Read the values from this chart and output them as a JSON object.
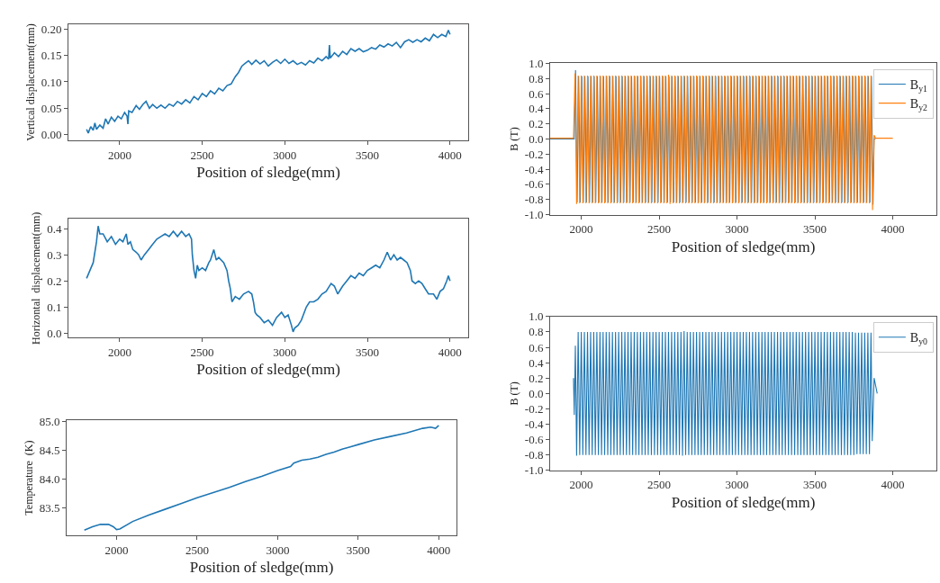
{
  "chart_data": [
    {
      "type": "line",
      "xlabel": "Position of sledge(mm)",
      "ylabel": "Vertical displacement(mm)",
      "xlim": [
        1690,
        4110
      ],
      "ylim": [
        -0.0117,
        0.21
      ],
      "xticks": [
        2000,
        2500,
        3000,
        3500,
        4000
      ],
      "yticks": [
        {
          "value": 0,
          "label": "0.00"
        },
        {
          "value": 0.05,
          "label": "0.05"
        },
        {
          "value": 0.1,
          "label": "0.10"
        },
        {
          "value": 0.15,
          "label": "0.15"
        },
        {
          "value": 0.2,
          "label": "0.20"
        }
      ],
      "x": [
        1800,
        1810,
        1825,
        1840,
        1850,
        1860,
        1880,
        1900,
        1915,
        1930,
        1950,
        1970,
        1990,
        2010,
        2030,
        2045,
        2050,
        2055,
        2075,
        2100,
        2120,
        2140,
        2160,
        2180,
        2200,
        2225,
        2250,
        2275,
        2300,
        2325,
        2350,
        2375,
        2400,
        2425,
        2450,
        2475,
        2500,
        2525,
        2550,
        2575,
        2600,
        2625,
        2650,
        2675,
        2700,
        2720,
        2740,
        2760,
        2780,
        2800,
        2825,
        2850,
        2875,
        2900,
        2925,
        2950,
        2975,
        3000,
        3025,
        3050,
        3075,
        3100,
        3125,
        3150,
        3175,
        3200,
        3225,
        3250,
        3265,
        3270,
        3275,
        3300,
        3325,
        3350,
        3375,
        3400,
        3425,
        3450,
        3475,
        3500,
        3525,
        3550,
        3575,
        3600,
        3625,
        3650,
        3675,
        3700,
        3725,
        3750,
        3775,
        3800,
        3825,
        3850,
        3875,
        3900,
        3925,
        3950,
        3975,
        3990,
        4000
      ],
      "series": [
        {
          "color": "#1f77b4",
          "values": [
            0.01,
            0.003,
            0.015,
            0.008,
            0.022,
            0.01,
            0.018,
            0.012,
            0.03,
            0.02,
            0.033,
            0.025,
            0.035,
            0.03,
            0.042,
            0.035,
            0.02,
            0.045,
            0.042,
            0.055,
            0.048,
            0.057,
            0.063,
            0.05,
            0.057,
            0.05,
            0.056,
            0.05,
            0.058,
            0.054,
            0.063,
            0.058,
            0.066,
            0.06,
            0.072,
            0.066,
            0.078,
            0.072,
            0.083,
            0.077,
            0.088,
            0.083,
            0.093,
            0.096,
            0.11,
            0.118,
            0.13,
            0.135,
            0.14,
            0.133,
            0.141,
            0.134,
            0.14,
            0.13,
            0.137,
            0.142,
            0.135,
            0.143,
            0.135,
            0.14,
            0.133,
            0.137,
            0.132,
            0.14,
            0.136,
            0.145,
            0.14,
            0.148,
            0.143,
            0.17,
            0.145,
            0.155,
            0.148,
            0.158,
            0.152,
            0.163,
            0.158,
            0.163,
            0.157,
            0.16,
            0.165,
            0.162,
            0.17,
            0.166,
            0.172,
            0.168,
            0.175,
            0.165,
            0.176,
            0.18,
            0.175,
            0.18,
            0.176,
            0.183,
            0.178,
            0.19,
            0.184,
            0.19,
            0.186,
            0.198,
            0.19
          ]
        }
      ]
    },
    {
      "type": "line",
      "xlabel": "Position of sledge(mm)",
      "ylabel": "Horizontal  displacement(mm)",
      "xlim": [
        1690,
        4110
      ],
      "ylim": [
        -0.017,
        0.437
      ],
      "xticks": [
        2000,
        2500,
        3000,
        3500,
        4000
      ],
      "yticks": [
        {
          "value": 0,
          "label": "0.0"
        },
        0.1,
        0.2,
        0.3,
        0.4
      ],
      "x": [
        1800,
        1820,
        1840,
        1860,
        1870,
        1880,
        1900,
        1925,
        1950,
        1975,
        2000,
        2020,
        2040,
        2050,
        2065,
        2080,
        2100,
        2115,
        2130,
        2150,
        2175,
        2200,
        2225,
        2250,
        2275,
        2300,
        2325,
        2350,
        2375,
        2400,
        2420,
        2435,
        2440,
        2450,
        2460,
        2470,
        2480,
        2500,
        2520,
        2540,
        2550,
        2570,
        2585,
        2600,
        2630,
        2650,
        2660,
        2670,
        2680,
        2700,
        2725,
        2750,
        2780,
        2800,
        2810,
        2820,
        2830,
        2850,
        2875,
        2900,
        2925,
        2950,
        2980,
        3000,
        3020,
        3040,
        3050,
        3060,
        3080,
        3100,
        3130,
        3150,
        3175,
        3200,
        3225,
        3250,
        3280,
        3300,
        3320,
        3350,
        3375,
        3400,
        3425,
        3450,
        3475,
        3500,
        3525,
        3550,
        3575,
        3600,
        3620,
        3640,
        3660,
        3680,
        3700,
        3720,
        3740,
        3760,
        3770,
        3790,
        3810,
        3830,
        3850,
        3870,
        3900,
        3920,
        3940,
        3960,
        3980,
        3990,
        4000
      ],
      "series": [
        {
          "color": "#1f77b4",
          "values": [
            0.21,
            0.24,
            0.27,
            0.35,
            0.41,
            0.38,
            0.38,
            0.35,
            0.37,
            0.34,
            0.36,
            0.35,
            0.38,
            0.34,
            0.35,
            0.32,
            0.31,
            0.3,
            0.28,
            0.3,
            0.32,
            0.34,
            0.36,
            0.37,
            0.38,
            0.37,
            0.39,
            0.37,
            0.39,
            0.37,
            0.38,
            0.36,
            0.3,
            0.24,
            0.21,
            0.26,
            0.24,
            0.25,
            0.24,
            0.27,
            0.28,
            0.32,
            0.28,
            0.29,
            0.27,
            0.24,
            0.2,
            0.17,
            0.12,
            0.14,
            0.13,
            0.15,
            0.16,
            0.15,
            0.12,
            0.08,
            0.07,
            0.06,
            0.04,
            0.05,
            0.03,
            0.06,
            0.08,
            0.06,
            0.07,
            0.03,
            0.005,
            0.02,
            0.03,
            0.05,
            0.1,
            0.12,
            0.12,
            0.13,
            0.15,
            0.16,
            0.19,
            0.18,
            0.15,
            0.18,
            0.2,
            0.22,
            0.21,
            0.23,
            0.22,
            0.24,
            0.25,
            0.26,
            0.25,
            0.28,
            0.31,
            0.28,
            0.3,
            0.28,
            0.29,
            0.28,
            0.27,
            0.24,
            0.2,
            0.19,
            0.2,
            0.19,
            0.17,
            0.15,
            0.15,
            0.13,
            0.16,
            0.17,
            0.2,
            0.22,
            0.2
          ]
        }
      ]
    },
    {
      "type": "line",
      "xlabel": "Position of sledge(mm)",
      "ylabel": "Temperature  (K)",
      "xlim": [
        1690,
        4110
      ],
      "ylim": [
        83.03,
        85.02
      ],
      "xticks": [
        2000,
        2500,
        3000,
        3500,
        4000
      ],
      "yticks": [
        83.5,
        {
          "value": 84,
          "label": "84.0"
        },
        84.5,
        {
          "value": 85,
          "label": "85.0"
        }
      ],
      "x": [
        1800,
        1850,
        1900,
        1950,
        1980,
        2000,
        2020,
        2100,
        2200,
        2300,
        2400,
        2500,
        2600,
        2700,
        2800,
        2900,
        3000,
        3080,
        3100,
        3150,
        3200,
        3250,
        3300,
        3350,
        3400,
        3450,
        3500,
        3600,
        3700,
        3800,
        3900,
        3950,
        3980,
        4000
      ],
      "series": [
        {
          "color": "#1f77b4",
          "values": [
            83.12,
            83.18,
            83.22,
            83.22,
            83.18,
            83.13,
            83.14,
            83.27,
            83.38,
            83.48,
            83.58,
            83.68,
            83.77,
            83.86,
            83.96,
            84.05,
            84.15,
            84.22,
            84.28,
            84.33,
            84.35,
            84.38,
            84.43,
            84.47,
            84.52,
            84.56,
            84.6,
            84.68,
            84.74,
            84.8,
            84.88,
            84.9,
            84.88,
            84.93
          ]
        }
      ]
    },
    {
      "type": "line",
      "xlabel": "Position of sledge(mm)",
      "ylabel": "B (T)",
      "legend": "top right",
      "xlim": [
        1800,
        4280
      ],
      "ylim": [
        -1.0,
        1.0
      ],
      "xticks": [
        2000,
        2500,
        3000,
        3500,
        4000
      ],
      "yticks": [
        {
          "value": -1,
          "label": "-1.0"
        },
        -0.8,
        -0.6,
        -0.4,
        -0.2,
        {
          "value": 0,
          "label": "0.0"
        },
        0.2,
        0.4,
        0.6,
        0.8,
        {
          "value": 1,
          "label": "1.0"
        }
      ],
      "x": [
        1800,
        1950,
        1960,
        1970,
        1980,
        1990,
        2000,
        2010,
        2020,
        2030,
        2040,
        2050,
        2060,
        2070,
        2080,
        2090,
        2100,
        2110,
        2120,
        2130,
        2140,
        2150,
        2160,
        2170,
        2180,
        2190,
        2200,
        2210,
        2220,
        2230,
        2240,
        2250,
        2260,
        2270,
        2280,
        2290,
        2300,
        2310,
        2320,
        2330,
        2340,
        2350,
        2360,
        2370,
        2380,
        2390,
        2400,
        2410,
        2420,
        2430,
        2440,
        2450,
        2460,
        2470,
        2480,
        2490,
        2500,
        2510,
        2520,
        2530,
        2540,
        2550,
        2560,
        2570,
        2580,
        2590,
        2600,
        2610,
        2620,
        2630,
        2640,
        2650,
        2660,
        2670,
        2680,
        2690,
        2700,
        2710,
        2720,
        2730,
        2740,
        2750,
        2760,
        2770,
        2780,
        2790,
        2800,
        2810,
        2820,
        2830,
        2840,
        2850,
        2860,
        2870,
        2880,
        2890,
        2900,
        2910,
        2920,
        2930,
        2940,
        2950,
        2960,
        2970,
        2980,
        2990,
        3000,
        3010,
        3020,
        3030,
        3040,
        3050,
        3060,
        3070,
        3080,
        3090,
        3100,
        3110,
        3120,
        3130,
        3140,
        3150,
        3160,
        3170,
        3180,
        3190,
        3200,
        3210,
        3220,
        3230,
        3240,
        3250,
        3260,
        3270,
        3280,
        3290,
        3300,
        3310,
        3320,
        3330,
        3340,
        3350,
        3360,
        3370,
        3380,
        3390,
        3400,
        3410,
        3420,
        3430,
        3440,
        3450,
        3460,
        3470,
        3480,
        3490,
        3500,
        3510,
        3520,
        3530,
        3540,
        3550,
        3560,
        3570,
        3580,
        3590,
        3600,
        3610,
        3620,
        3630,
        3640,
        3650,
        3660,
        3670,
        3680,
        3690,
        3700,
        3710,
        3720,
        3730,
        3740,
        3750,
        3760,
        3770,
        3780,
        3790,
        3800,
        3810,
        3820,
        3830,
        3840,
        3850,
        3860,
        3870,
        3880,
        3890,
        4000
      ],
      "series": [
        {
          "name": "B$_{y1}$",
          "color": "#1f77b4",
          "x": [
            1800,
            1955,
            1963,
            1973,
            1983,
            1993,
            2003,
            2013,
            2023,
            2033,
            2043,
            2053,
            2063,
            2073,
            2083,
            2093,
            2103,
            2113,
            2123,
            2133,
            2143,
            2153,
            2163,
            2173,
            2183,
            2193,
            2203,
            2213,
            2223,
            2233,
            2243,
            2253,
            2263,
            2273,
            2283,
            2293,
            2303,
            2313,
            2323,
            2333,
            2343,
            2353,
            2363,
            2373,
            2383,
            2393,
            2403,
            2413,
            2423,
            2433,
            2443,
            2453,
            2463,
            2473,
            2483,
            2493,
            2503,
            2513,
            2523,
            2533,
            2543,
            2553,
            2563,
            2573,
            2583,
            2593,
            2603,
            2613,
            2623,
            2633,
            2643,
            2653,
            2663,
            2673,
            2683,
            2693,
            2703,
            2713,
            2723,
            2733,
            2743,
            2753,
            2763,
            2773,
            2783,
            2793,
            2803,
            2813,
            2823,
            2833,
            2843,
            2853,
            2863,
            2873,
            2883,
            2893,
            2903,
            2913,
            2923,
            2933,
            2943,
            2953,
            2963,
            2973,
            2983,
            2993,
            3003,
            3013,
            3023,
            3033,
            3043,
            3053,
            3063,
            3073,
            3083,
            3093,
            3103,
            3113,
            3123,
            3133,
            3143,
            3153,
            3163,
            3173,
            3183,
            3193,
            3203,
            3213,
            3223,
            3233,
            3243,
            3253,
            3263,
            3273,
            3283,
            3293,
            3303,
            3313,
            3323,
            3333,
            3343,
            3353,
            3363,
            3373,
            3383,
            3393,
            3403,
            3413,
            3423,
            3433,
            3443,
            3453,
            3463,
            3473,
            3483,
            3493,
            3503,
            3513,
            3523,
            3533,
            3543,
            3553,
            3563,
            3573,
            3583,
            3593,
            3603,
            3613,
            3623,
            3633,
            3643,
            3653,
            3663,
            3673,
            3683,
            3693,
            3703,
            3713,
            3723,
            3733,
            3743,
            3753,
            3763,
            3773,
            3783,
            3793,
            3803,
            3813,
            3823,
            3833,
            3843,
            3853,
            3863,
            3873,
            3880,
            3890
          ],
          "values": [
            0.0,
            0.0,
            0.91,
            -0.84,
            0.83,
            -0.84,
            0.83,
            -0.84,
            0.83,
            -0.84,
            0.83,
            -0.84,
            0.83,
            -0.84,
            0.83,
            -0.84,
            0.83,
            -0.84,
            0.83,
            -0.84,
            0.83,
            -0.84,
            0.83,
            -0.84,
            0.83,
            -0.84,
            0.83,
            -0.84,
            0.83,
            -0.84,
            0.83,
            -0.84,
            0.83,
            -0.84,
            0.83,
            -0.84,
            0.83,
            -0.84,
            0.83,
            -0.84,
            0.83,
            -0.84,
            0.83,
            -0.84,
            0.83,
            -0.84,
            0.83,
            -0.84,
            0.83,
            -0.84,
            0.83,
            -0.84,
            0.83,
            -0.84,
            0.83,
            -0.84,
            0.83,
            -0.84,
            0.83,
            -0.84,
            0.83,
            -0.84,
            0.83,
            -0.84,
            0.83,
            -0.84,
            0.83,
            -0.84,
            0.83,
            -0.84,
            0.83,
            -0.84,
            0.83,
            -0.84,
            0.83,
            -0.84,
            0.83,
            -0.84,
            0.83,
            -0.84,
            0.83,
            -0.84,
            0.83,
            -0.84,
            0.83,
            -0.84,
            0.83,
            -0.84,
            0.83,
            -0.84,
            0.83,
            -0.84,
            0.83,
            -0.84,
            0.83,
            -0.84,
            0.83,
            -0.84,
            0.83,
            -0.84,
            0.83,
            -0.84,
            0.83,
            -0.84,
            0.83,
            -0.84,
            0.83,
            -0.84,
            0.83,
            -0.84,
            0.83,
            -0.84,
            0.83,
            -0.84,
            0.83,
            -0.84,
            0.83,
            -0.84,
            0.83,
            -0.84,
            0.83,
            -0.84,
            0.83,
            -0.84,
            0.83,
            -0.84,
            0.83,
            -0.84,
            0.83,
            -0.84,
            0.83,
            -0.84,
            0.83,
            -0.84,
            0.83,
            -0.84,
            0.83,
            -0.84,
            0.83,
            -0.84,
            0.83,
            -0.84,
            0.83,
            -0.84,
            0.83,
            -0.84,
            0.83,
            -0.84,
            0.83,
            -0.84,
            0.83,
            -0.84,
            0.83,
            -0.84,
            0.83,
            -0.84,
            0.83,
            -0.84,
            0.83,
            -0.84,
            0.83,
            -0.84,
            0.83,
            -0.84,
            0.83,
            -0.84,
            0.83,
            -0.84,
            0.83,
            -0.84,
            0.83,
            -0.84,
            0.83,
            -0.84,
            0.83,
            -0.84,
            0.83,
            -0.84,
            0.83,
            -0.84,
            0.83,
            -0.84,
            0.83,
            -0.84,
            0.83,
            -0.84,
            0.83,
            -0.84,
            0.83,
            -0.84,
            0.83,
            -0.84,
            0.83,
            -0.87,
            0.0,
            0.01
          ]
        },
        {
          "name": "B$_{y2}$",
          "color": "#ff7f0e",
          "values": [
            0.01,
            0.01,
            0.87,
            -0.86,
            0.84,
            -0.85,
            0.84,
            -0.85,
            0.84,
            -0.85,
            0.84,
            -0.85,
            0.84,
            -0.85,
            0.84,
            -0.85,
            0.84,
            -0.85,
            0.84,
            -0.85,
            0.84,
            -0.85,
            0.84,
            -0.85,
            0.84,
            -0.85,
            0.84,
            -0.85,
            0.84,
            -0.85,
            0.84,
            -0.85,
            0.84,
            -0.85,
            0.84,
            -0.85,
            0.84,
            -0.85,
            0.84,
            -0.85,
            0.84,
            -0.85,
            0.84,
            -0.85,
            0.84,
            -0.85,
            0.84,
            -0.85,
            0.84,
            -0.85,
            0.84,
            -0.85,
            0.84,
            -0.85,
            0.84,
            -0.85,
            0.84,
            -0.85,
            0.84,
            -0.85,
            0.84,
            -0.85,
            0.85,
            -0.86,
            0.84,
            -0.85,
            0.84,
            -0.85,
            0.84,
            -0.85,
            0.84,
            -0.85,
            0.84,
            -0.85,
            0.84,
            -0.85,
            0.84,
            -0.85,
            0.84,
            -0.85,
            0.84,
            -0.85,
            0.84,
            -0.85,
            0.84,
            -0.85,
            0.84,
            -0.85,
            0.84,
            -0.85,
            0.84,
            -0.85,
            0.84,
            -0.85,
            0.84,
            -0.85,
            0.84,
            -0.85,
            0.84,
            -0.85,
            0.84,
            -0.85,
            0.84,
            -0.85,
            0.84,
            -0.85,
            0.84,
            -0.85,
            0.84,
            -0.85,
            0.84,
            -0.85,
            0.84,
            -0.85,
            0.84,
            -0.85,
            0.84,
            -0.85,
            0.84,
            -0.85,
            0.84,
            -0.85,
            0.84,
            -0.85,
            0.84,
            -0.85,
            0.84,
            -0.85,
            0.84,
            -0.85,
            0.84,
            -0.85,
            0.84,
            -0.85,
            0.84,
            -0.85,
            0.84,
            -0.85,
            0.84,
            -0.85,
            0.84,
            -0.85,
            0.84,
            -0.85,
            0.84,
            -0.85,
            0.84,
            -0.85,
            0.84,
            -0.85,
            0.84,
            -0.85,
            0.84,
            -0.85,
            0.84,
            -0.85,
            0.84,
            -0.85,
            0.84,
            -0.85,
            0.84,
            -0.85,
            0.84,
            -0.85,
            0.84,
            -0.85,
            0.84,
            -0.85,
            0.84,
            -0.85,
            0.84,
            -0.85,
            0.84,
            -0.85,
            0.84,
            -0.85,
            0.84,
            -0.85,
            0.84,
            -0.85,
            0.84,
            -0.85,
            0.84,
            -0.85,
            0.84,
            -0.85,
            0.84,
            -0.85,
            0.84,
            -0.85,
            0.84,
            -0.85,
            0.84,
            -0.94,
            0.05,
            0.01,
            0.01
          ]
        }
      ]
    },
    {
      "type": "line",
      "xlabel": "Position of sledge(mm)",
      "ylabel": "B (T)",
      "legend": "top right",
      "xlim": [
        1800,
        4280
      ],
      "ylim": [
        -1.0,
        1.0
      ],
      "xticks": [
        2000,
        2500,
        3000,
        3500,
        4000
      ],
      "yticks": [
        {
          "value": -1,
          "label": "-1.0"
        },
        -0.8,
        -0.6,
        -0.4,
        -0.2,
        {
          "value": 0,
          "label": "0.0"
        },
        0.2,
        0.4,
        0.6,
        0.8,
        {
          "value": 1,
          "label": "1.0"
        }
      ],
      "x": [
        1950,
        1955,
        1962,
        1970,
        1980,
        1990,
        2000,
        2010,
        2020,
        2030,
        2040,
        2050,
        2060,
        2070,
        2080,
        2090,
        2100,
        2110,
        2120,
        2130,
        2140,
        2150,
        2160,
        2170,
        2180,
        2190,
        2200,
        2210,
        2220,
        2230,
        2240,
        2250,
        2260,
        2270,
        2280,
        2290,
        2300,
        2310,
        2320,
        2330,
        2340,
        2350,
        2360,
        2370,
        2380,
        2390,
        2400,
        2410,
        2420,
        2430,
        2440,
        2450,
        2460,
        2470,
        2480,
        2490,
        2500,
        2510,
        2520,
        2530,
        2540,
        2550,
        2560,
        2570,
        2580,
        2590,
        2600,
        2610,
        2620,
        2630,
        2640,
        2650,
        2660,
        2670,
        2680,
        2690,
        2700,
        2710,
        2720,
        2730,
        2740,
        2750,
        2760,
        2770,
        2780,
        2790,
        2800,
        2810,
        2820,
        2830,
        2840,
        2850,
        2860,
        2870,
        2880,
        2890,
        2900,
        2910,
        2920,
        2930,
        2940,
        2950,
        2960,
        2970,
        2980,
        2990,
        3000,
        3010,
        3020,
        3030,
        3040,
        3050,
        3060,
        3070,
        3080,
        3090,
        3100,
        3110,
        3120,
        3130,
        3140,
        3150,
        3160,
        3170,
        3180,
        3190,
        3200,
        3210,
        3220,
        3230,
        3240,
        3250,
        3260,
        3270,
        3280,
        3290,
        3300,
        3310,
        3320,
        3330,
        3340,
        3350,
        3360,
        3370,
        3380,
        3390,
        3400,
        3410,
        3420,
        3430,
        3440,
        3450,
        3460,
        3470,
        3480,
        3490,
        3500,
        3510,
        3520,
        3530,
        3540,
        3550,
        3560,
        3570,
        3580,
        3590,
        3600,
        3610,
        3620,
        3630,
        3640,
        3650,
        3660,
        3670,
        3680,
        3690,
        3700,
        3710,
        3720,
        3730,
        3740,
        3750,
        3760,
        3770,
        3780,
        3790,
        3800,
        3810,
        3820,
        3830,
        3840,
        3850,
        3860,
        3868,
        3880,
        3900
      ],
      "series": [
        {
          "name": "B$_{y0}$",
          "color": "#1f77b4",
          "values": [
            0.2,
            -0.28,
            0.62,
            -0.81,
            0.8,
            -0.8,
            0.8,
            -0.8,
            0.8,
            -0.8,
            0.8,
            -0.8,
            0.8,
            -0.8,
            0.8,
            -0.8,
            0.8,
            -0.8,
            0.8,
            -0.8,
            0.8,
            -0.8,
            0.8,
            -0.8,
            0.8,
            -0.8,
            0.8,
            -0.8,
            0.8,
            -0.8,
            0.8,
            -0.8,
            0.8,
            -0.8,
            0.8,
            -0.8,
            0.8,
            -0.8,
            0.8,
            -0.8,
            0.8,
            -0.8,
            0.8,
            -0.8,
            0.8,
            -0.8,
            0.8,
            -0.8,
            0.8,
            -0.8,
            0.8,
            -0.8,
            0.8,
            -0.8,
            0.8,
            -0.8,
            0.8,
            -0.8,
            0.8,
            -0.8,
            0.8,
            -0.8,
            0.8,
            -0.8,
            0.8,
            -0.8,
            0.8,
            -0.8,
            0.8,
            -0.8,
            0.8,
            -0.81,
            0.81,
            -0.8,
            0.8,
            -0.8,
            0.8,
            -0.8,
            0.8,
            -0.8,
            0.8,
            -0.8,
            0.8,
            -0.8,
            0.8,
            -0.8,
            0.8,
            -0.8,
            0.8,
            -0.8,
            0.8,
            -0.8,
            0.8,
            -0.8,
            0.8,
            -0.8,
            0.8,
            -0.8,
            0.8,
            -0.8,
            0.8,
            -0.8,
            0.8,
            -0.8,
            0.8,
            -0.8,
            0.8,
            -0.8,
            0.8,
            -0.8,
            0.8,
            -0.8,
            0.8,
            -0.8,
            0.8,
            -0.8,
            0.8,
            -0.8,
            0.8,
            -0.8,
            0.8,
            -0.8,
            0.8,
            -0.8,
            0.8,
            -0.8,
            0.8,
            -0.8,
            0.8,
            -0.8,
            0.8,
            -0.8,
            0.8,
            -0.8,
            0.8,
            -0.8,
            0.8,
            -0.8,
            0.8,
            -0.8,
            0.8,
            -0.8,
            0.8,
            -0.8,
            0.8,
            -0.8,
            0.8,
            -0.8,
            0.8,
            -0.8,
            0.8,
            -0.8,
            0.8,
            -0.8,
            0.8,
            -0.8,
            0.8,
            -0.8,
            0.8,
            -0.8,
            0.8,
            -0.8,
            0.8,
            -0.8,
            0.8,
            -0.8,
            0.8,
            -0.8,
            0.8,
            -0.8,
            0.8,
            -0.8,
            0.8,
            -0.8,
            0.8,
            -0.8,
            0.8,
            -0.8,
            0.8,
            -0.8,
            0.8,
            -0.8,
            0.79,
            -0.79,
            0.79,
            -0.79,
            0.79,
            -0.79,
            0.79,
            -0.79,
            0.79,
            -0.79,
            0.79,
            -0.62,
            0.2,
            0.0
          ]
        }
      ]
    }
  ]
}
